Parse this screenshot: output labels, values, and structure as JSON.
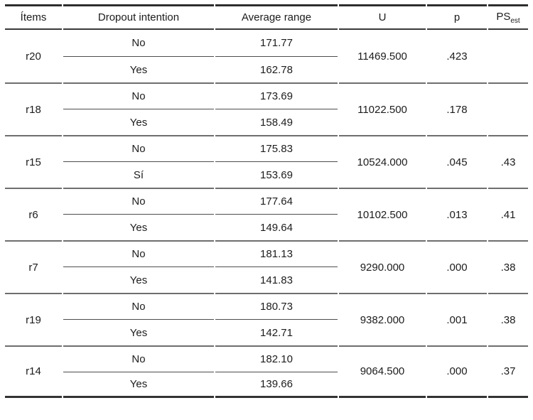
{
  "table": {
    "columns": {
      "items": "Ítems",
      "dropout": "Dropout intention",
      "average_range": "Average range",
      "u": "U",
      "p": "p",
      "ps": {
        "label": "PS",
        "subscript": "est"
      }
    },
    "rows": [
      {
        "item": "r20",
        "sub": [
          {
            "dropout": "No",
            "average_range": "171.77"
          },
          {
            "dropout": "Yes",
            "average_range": "162.78"
          }
        ],
        "u": "11469.500",
        "p": ".423",
        "ps_est": ""
      },
      {
        "item": "r18",
        "sub": [
          {
            "dropout": "No",
            "average_range": "173.69"
          },
          {
            "dropout": "Yes",
            "average_range": "158.49"
          }
        ],
        "u": "11022.500",
        "p": ".178",
        "ps_est": ""
      },
      {
        "item": "r15",
        "sub": [
          {
            "dropout": "No",
            "average_range": "175.83"
          },
          {
            "dropout": "Sí",
            "average_range": "153.69"
          }
        ],
        "u": "10524.000",
        "p": ".045",
        "ps_est": ".43"
      },
      {
        "item": "r6",
        "sub": [
          {
            "dropout": "No",
            "average_range": "177.64"
          },
          {
            "dropout": "Yes",
            "average_range": "149.64"
          }
        ],
        "u": "10102.500",
        "p": ".013",
        "ps_est": ".41"
      },
      {
        "item": "r7",
        "sub": [
          {
            "dropout": "No",
            "average_range": "181.13"
          },
          {
            "dropout": "Yes",
            "average_range": "141.83"
          }
        ],
        "u": "9290.000",
        "p": ".000",
        "ps_est": ".38"
      },
      {
        "item": "r19",
        "sub": [
          {
            "dropout": "No",
            "average_range": "180.73"
          },
          {
            "dropout": "Yes",
            "average_range": "142.71"
          }
        ],
        "u": "9382.000",
        "p": ".001",
        "ps_est": ".38"
      },
      {
        "item": "r14",
        "sub": [
          {
            "dropout": "No",
            "average_range": "182.10"
          },
          {
            "dropout": "Yes",
            "average_range": "139.66"
          }
        ],
        "u": "9064.500",
        "p": ".000",
        "ps_est": ".37"
      }
    ]
  }
}
